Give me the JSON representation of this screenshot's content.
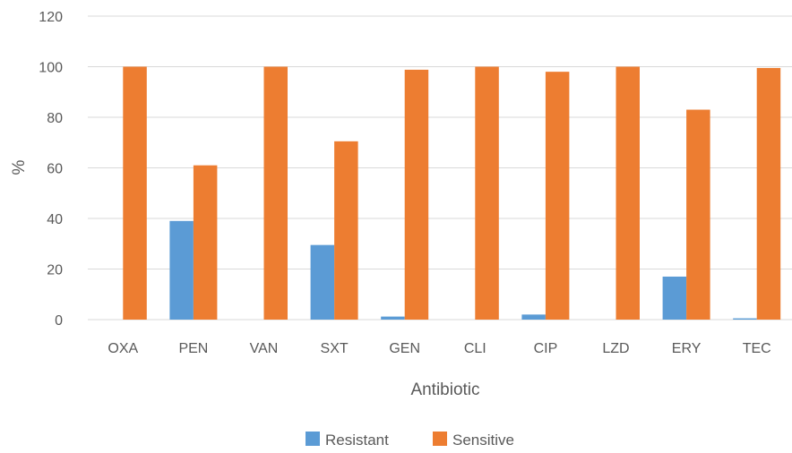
{
  "chart_data": {
    "type": "bar",
    "xlabel": "Antibiotic",
    "ylabel": "%",
    "ylim": [
      0,
      120
    ],
    "yticks": [
      0,
      20,
      40,
      60,
      80,
      100,
      120
    ],
    "grid": true,
    "legend_position": "bottom",
    "categories": [
      "OXA",
      "PEN",
      "VAN",
      "SXT",
      "GEN",
      "CLI",
      "CIP",
      "LZD",
      "ERY",
      "TEC"
    ],
    "series": [
      {
        "name": "Resistant",
        "color": "#5b9bd5",
        "values": [
          0,
          39,
          0,
          29.5,
          1.2,
          0,
          2,
          0,
          17,
          0.5
        ]
      },
      {
        "name": "Sensitive",
        "color": "#ed7d31",
        "values": [
          100,
          61,
          100,
          70.5,
          98.8,
          100,
          98,
          100,
          83,
          99.5
        ]
      }
    ]
  }
}
